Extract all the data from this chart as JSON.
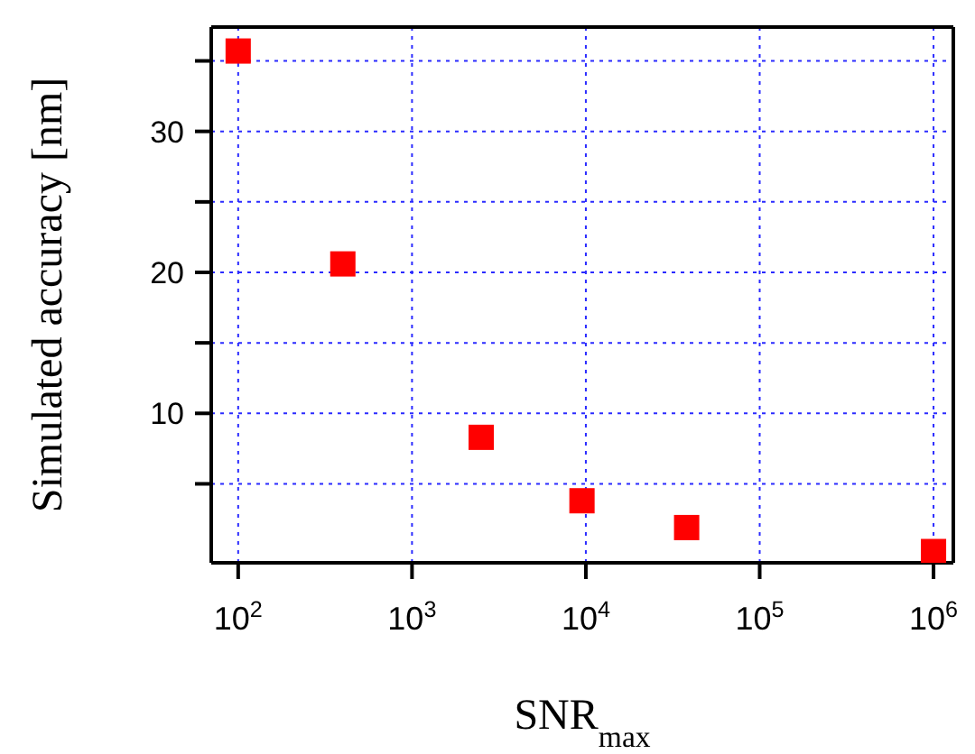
{
  "chart_data": {
    "type": "scatter",
    "xlabel": "SNR$_{max}$",
    "ylabel": "Simulated accuracy [nm]",
    "x": [
      100,
      400,
      2500,
      9500,
      38000,
      1000000
    ],
    "values": [
      35.7,
      20.6,
      8.3,
      3.8,
      1.9,
      0.2
    ],
    "color": "#ff0000",
    "marker": "square",
    "log": "x",
    "grid": true,
    "xlim": [
      70,
      1300000
    ],
    "xticks": [
      {
        "value": 100,
        "label": "10$^{2}$"
      },
      {
        "value": 1000,
        "label": "10$^{3}$"
      },
      {
        "value": 10000,
        "label": "10$^{4}$"
      },
      {
        "value": 100000,
        "label": "10$^{5}$"
      },
      {
        "value": 1000000,
        "label": "10$^{6}$"
      }
    ],
    "ylim": [
      -0.6,
      37.4
    ],
    "yticks": [
      {
        "value": 5,
        "label": null
      },
      10,
      {
        "value": 15,
        "label": null
      },
      20,
      {
        "value": 25,
        "label": null
      },
      30,
      {
        "value": 35,
        "label": null
      }
    ]
  }
}
